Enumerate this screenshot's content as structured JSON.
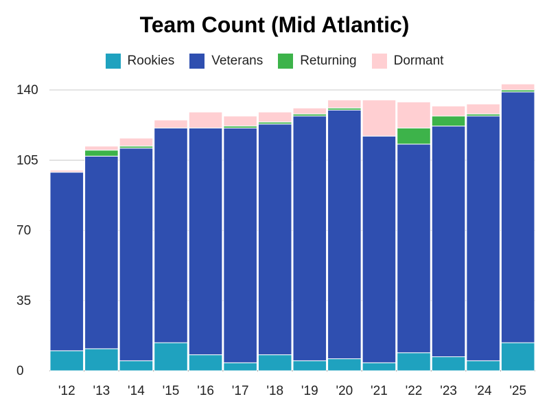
{
  "chart_data": {
    "type": "bar",
    "stacked": true,
    "title": "Team Count (Mid Atlantic)",
    "xlabel": "",
    "ylabel": "",
    "ylim": [
      0,
      140
    ],
    "yticks": [
      "0",
      "35",
      "70",
      "105",
      "140"
    ],
    "grid": true,
    "legend_position": "top",
    "categories": [
      "'12",
      "'13",
      "'14",
      "'15",
      "'16",
      "'17",
      "'18",
      "'19",
      "'20",
      "'21",
      "'22",
      "'23",
      "'24",
      "'25"
    ],
    "series": [
      {
        "name": "Rookies",
        "color": "#1fa2bf",
        "values": [
          10,
          11,
          5,
          14,
          8,
          4,
          8,
          5,
          6,
          4,
          9,
          7,
          5,
          14
        ]
      },
      {
        "name": "Veterans",
        "color": "#2f4fb0",
        "values": [
          89,
          96,
          106,
          107,
          113,
          117,
          115,
          122,
          124,
          113,
          104,
          115,
          122,
          125
        ]
      },
      {
        "name": "Returning",
        "color": "#3db34a",
        "values": [
          0,
          3,
          1,
          0,
          0,
          1,
          1,
          1,
          1,
          0,
          8,
          5,
          1,
          1
        ]
      },
      {
        "name": "Dormant",
        "color": "#ffcfd2",
        "values": [
          1,
          2,
          4,
          4,
          8,
          5,
          5,
          3,
          4,
          18,
          13,
          5,
          5,
          3
        ]
      }
    ]
  }
}
